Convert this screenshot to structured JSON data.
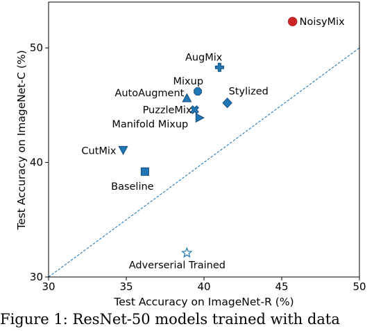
{
  "chart_data": {
    "type": "scatter",
    "xlabel": "Test Accuracy on ImageNet-R (%)",
    "ylabel": "Test Accuracy on ImageNet-C (%)",
    "xlim": [
      30,
      50
    ],
    "ylim": [
      30,
      54
    ],
    "xticks": [
      30,
      35,
      40,
      45,
      50
    ],
    "yticks": [
      30,
      40,
      50
    ],
    "grid": false,
    "diagonal": {
      "style": "dashed",
      "color": "#1f77b4",
      "from": [
        30,
        30
      ],
      "to": [
        50,
        50
      ]
    },
    "points": [
      {
        "label": "NoisyMix",
        "x": 45.7,
        "y": 52.3,
        "marker": "circle",
        "color": "#d62728"
      },
      {
        "label": "AugMix",
        "x": 41.0,
        "y": 48.3,
        "marker": "plus",
        "color": "#1f77b4"
      },
      {
        "label": "Mixup",
        "x": 39.6,
        "y": 46.2,
        "marker": "octagon",
        "color": "#1f77b4"
      },
      {
        "label": "AutoAugment",
        "x": 38.9,
        "y": 45.6,
        "marker": "triangle-up",
        "color": "#1f77b4"
      },
      {
        "label": "Stylized",
        "x": 41.5,
        "y": 45.2,
        "marker": "diamond",
        "color": "#1f77b4"
      },
      {
        "label": "PuzzleMix",
        "x": 39.4,
        "y": 44.6,
        "marker": "x",
        "color": "#1f77b4"
      },
      {
        "label": "Manifold Mixup",
        "x": 39.7,
        "y": 43.9,
        "marker": "triangle-right",
        "color": "#1f77b4"
      },
      {
        "label": "CutMix",
        "x": 34.8,
        "y": 41.1,
        "marker": "triangle-down",
        "color": "#1f77b4"
      },
      {
        "label": "Baseline",
        "x": 36.2,
        "y": 39.2,
        "marker": "square",
        "color": "#1f77b4"
      },
      {
        "label": "Adverserial Trained",
        "x": 38.9,
        "y": 32.1,
        "marker": "star",
        "color": "#1f77b4"
      }
    ]
  },
  "caption": "Figure 1:  ResNet-50 models trained with data"
}
